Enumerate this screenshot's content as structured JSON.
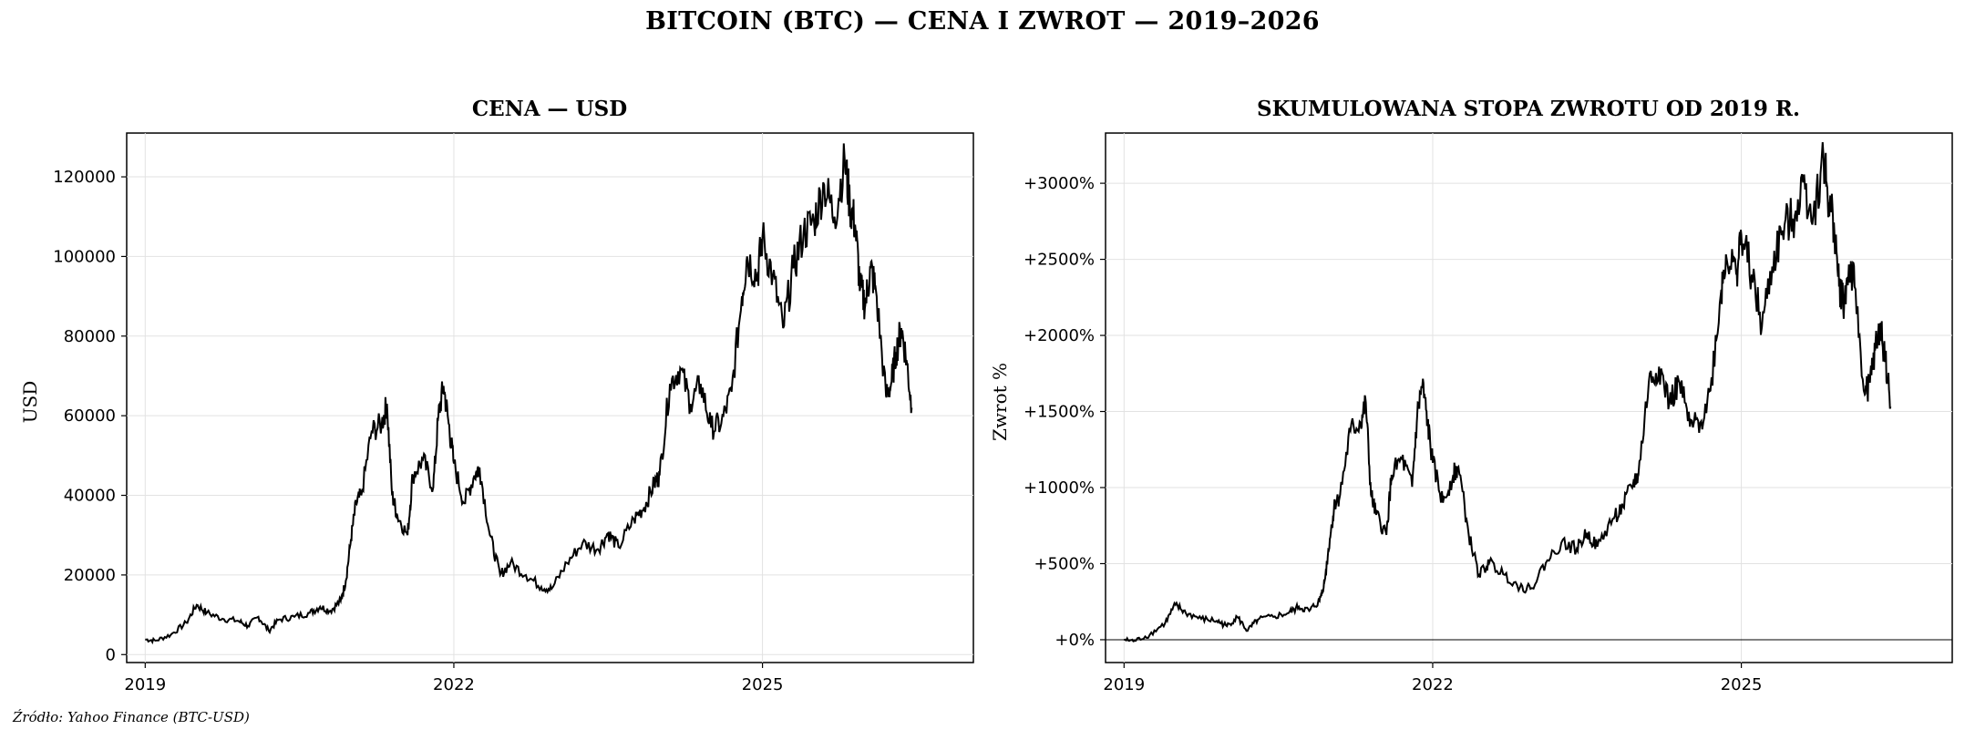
{
  "suptitle": "BITCOIN (BTC) — CENA I ZWROT — 2019–2026",
  "source": "Źródło: Yahoo Finance (BTC-USD)",
  "chart_data": [
    {
      "type": "line",
      "title": "CENA — USD",
      "xlabel": "",
      "ylabel": "USD",
      "x_ticks": [
        "2019",
        "2022",
        "2025"
      ],
      "y_ticks": [
        "0",
        "20000",
        "40000",
        "60000",
        "80000",
        "100000",
        "120000"
      ],
      "xlim": [
        2018.82,
        2027.05
      ],
      "ylim": [
        -2000,
        131000
      ],
      "grid": true,
      "series": [
        {
          "x": [
            2019.0,
            2019.1,
            2019.25,
            2019.4,
            2019.5,
            2019.6,
            2019.75,
            2019.9,
            2020.0,
            2020.1,
            2020.2,
            2020.3,
            2020.45,
            2020.6,
            2020.7,
            2020.8,
            2020.9,
            2020.95,
            2021.0,
            2021.05,
            2021.1,
            2021.2,
            2021.3,
            2021.35,
            2021.4,
            2021.45,
            2021.55,
            2021.6,
            2021.7,
            2021.8,
            2021.85,
            2021.9,
            2021.95,
            2022.0,
            2022.1,
            2022.2,
            2022.25,
            2022.35,
            2022.45,
            2022.55,
            2022.7,
            2022.85,
            2022.95,
            2023.1,
            2023.25,
            2023.4,
            2023.5,
            2023.6,
            2023.75,
            2023.85,
            2023.95,
            2024.0,
            2024.1,
            2024.2,
            2024.3,
            2024.4,
            2024.5,
            2024.6,
            2024.7,
            2024.8,
            2024.85,
            2024.95,
            2025.0,
            2025.1,
            2025.2,
            2025.3,
            2025.4,
            2025.5,
            2025.6,
            2025.7,
            2025.8,
            2025.85,
            2025.9,
            2025.95,
            2026.0,
            2026.05,
            2026.1,
            2026.2,
            2026.25,
            2026.3,
            2026.35,
            2026.4,
            2026.45
          ],
          "y": [
            3800,
            3500,
            5000,
            8000,
            12500,
            10500,
            9000,
            8500,
            7200,
            9500,
            6000,
            8800,
            9500,
            10500,
            12000,
            11000,
            13500,
            18500,
            29000,
            38000,
            40000,
            56000,
            58000,
            63000,
            40000,
            35000,
            30000,
            45000,
            49000,
            42000,
            60000,
            67500,
            58000,
            48000,
            38000,
            45000,
            47000,
            30000,
            20000,
            23000,
            20000,
            17000,
            16500,
            23000,
            28000,
            26500,
            30500,
            27000,
            34000,
            37000,
            43000,
            45000,
            68000,
            72000,
            63000,
            68000,
            57000,
            58000,
            66000,
            90000,
            100000,
            95000,
            105000,
            95000,
            82000,
            97000,
            106000,
            109000,
            118000,
            110000,
            124000,
            113000,
            108000,
            92000,
            88000,
            97000,
            92000,
            65000,
            68000,
            76000,
            82000,
            74000,
            62000
          ]
        }
      ]
    },
    {
      "type": "line",
      "title": "SKUMULOWANA STOPA ZWROTU OD 2019 R.",
      "xlabel": "",
      "ylabel": "Zwrot %",
      "x_ticks": [
        "2019",
        "2022",
        "2025"
      ],
      "y_ticks": [
        "+0%",
        "+500%",
        "+1000%",
        "+1500%",
        "+2000%",
        "+2500%",
        "+3000%"
      ],
      "xlim": [
        2018.82,
        2027.05
      ],
      "ylim": [
        -150,
        3330
      ],
      "grid": true,
      "reference_line": 0,
      "series": [
        {
          "x": [
            2019.0,
            2019.1,
            2019.25,
            2019.4,
            2019.5,
            2019.6,
            2019.75,
            2019.9,
            2020.0,
            2020.1,
            2020.2,
            2020.3,
            2020.45,
            2020.6,
            2020.7,
            2020.8,
            2020.9,
            2020.95,
            2021.0,
            2021.05,
            2021.1,
            2021.2,
            2021.3,
            2021.35,
            2021.4,
            2021.45,
            2021.55,
            2021.6,
            2021.7,
            2021.8,
            2021.85,
            2021.9,
            2021.95,
            2022.0,
            2022.1,
            2022.2,
            2022.25,
            2022.35,
            2022.45,
            2022.55,
            2022.7,
            2022.85,
            2022.95,
            2023.1,
            2023.25,
            2023.4,
            2023.5,
            2023.6,
            2023.75,
            2023.85,
            2023.95,
            2024.0,
            2024.1,
            2024.2,
            2024.3,
            2024.4,
            2024.5,
            2024.6,
            2024.7,
            2024.8,
            2024.85,
            2024.95,
            2025.0,
            2025.1,
            2025.2,
            2025.3,
            2025.4,
            2025.5,
            2025.6,
            2025.7,
            2025.8,
            2025.85,
            2025.9,
            2025.95,
            2026.0,
            2026.05,
            2026.1,
            2026.2,
            2026.25,
            2026.3,
            2026.35,
            2026.4,
            2026.45
          ],
          "y": [
            0,
            -8,
            32,
            111,
            229,
            176,
            137,
            124,
            89,
            150,
            58,
            132,
            150,
            176,
            216,
            189,
            255,
            387,
            663,
            900,
            953,
            1374,
            1426,
            1558,
            953,
            821,
            689,
            1084,
            1189,
            1005,
            1479,
            1676,
            1426,
            1163,
            900,
            1084,
            1137,
            689,
            426,
            505,
            426,
            347,
            334,
            505,
            637,
            597,
            703,
            611,
            795,
            874,
            1032,
            1084,
            1689,
            1795,
            1558,
            1689,
            1400,
            1426,
            1637,
            2268,
            2532,
            2400,
            2663,
            2400,
            2058,
            2453,
            2689,
            2768,
            3005,
            2795,
            3163,
            2874,
            2742,
            2321,
            2216,
            2453,
            2321,
            1611,
            1689,
            1900,
            2058,
            1847,
            1532
          ]
        }
      ]
    }
  ]
}
